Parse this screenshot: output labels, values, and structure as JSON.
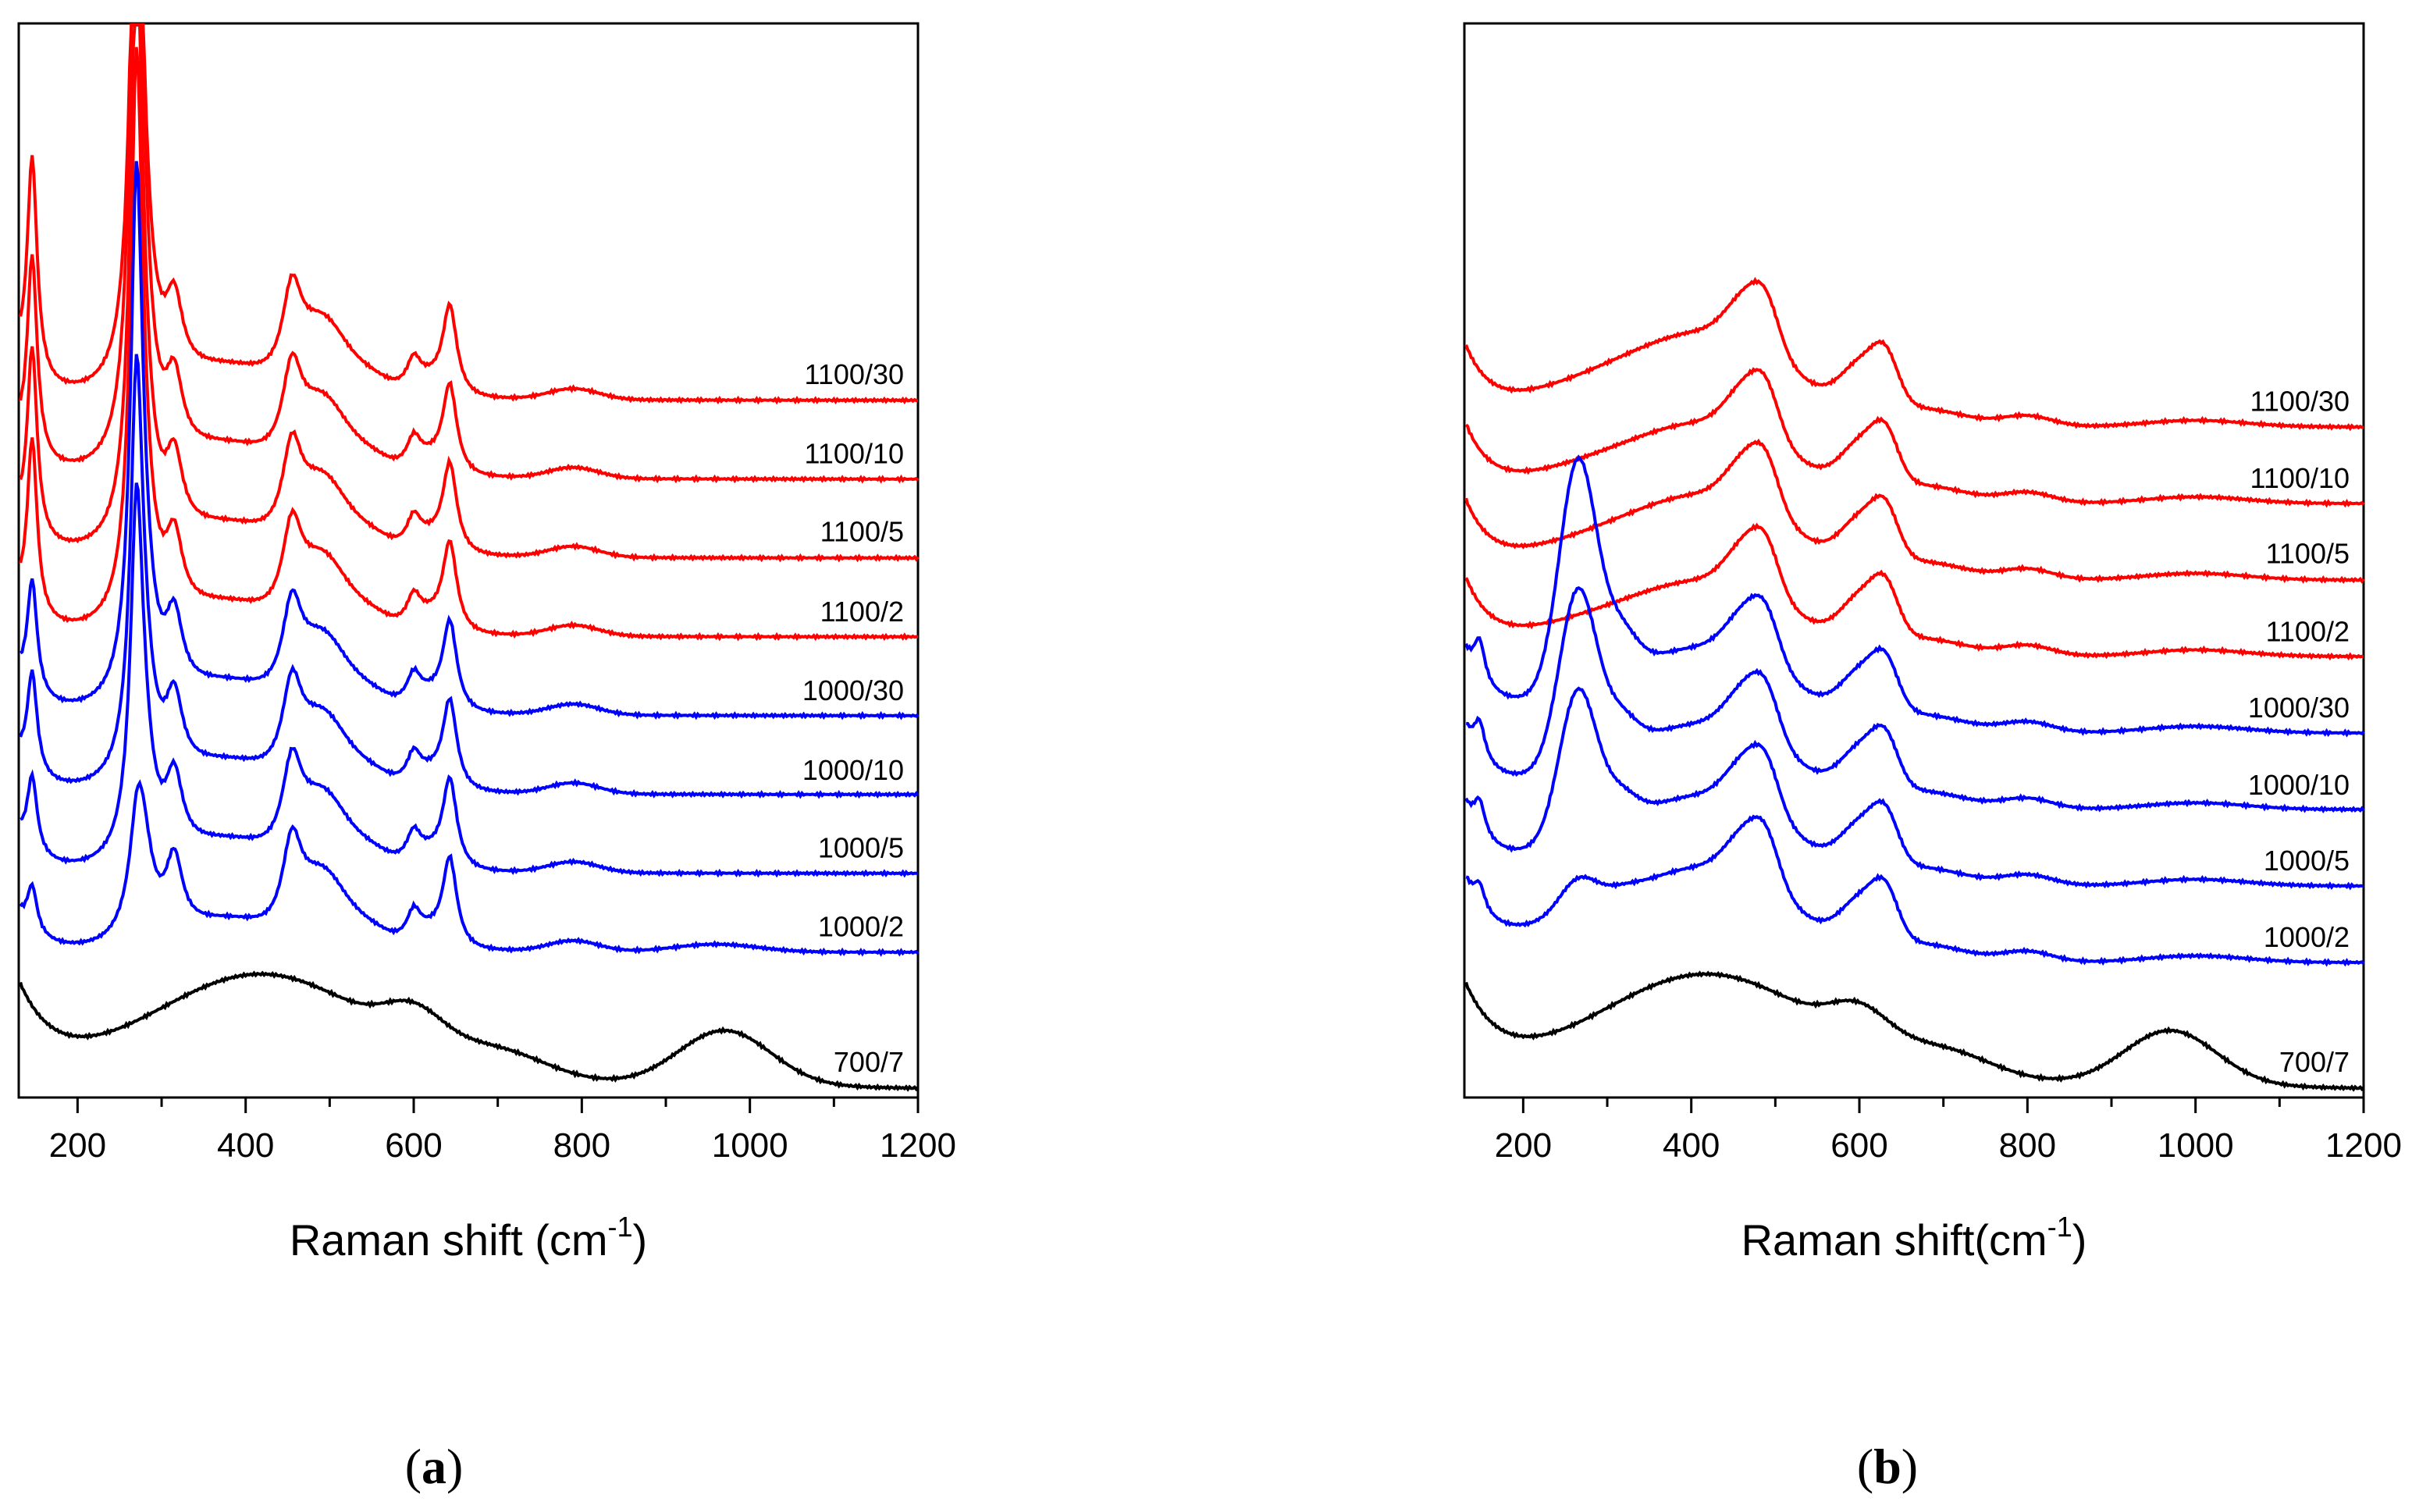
{
  "chart_data": [
    {
      "type": "line",
      "panel": "a",
      "caption_open": "(",
      "caption_letter": "a",
      "caption_close": ")",
      "xlabel_main": "Raman shift (cm",
      "xlabel_sup": "-1",
      "xlabel_close": ")",
      "xlim": [
        130,
        1200
      ],
      "xticks": [
        "200",
        "400",
        "600",
        "800",
        "1000",
        "1200"
      ],
      "ylabel": "",
      "colors": {
        "red": "#ff0000",
        "blue": "#0000ff",
        "black": "#000000"
      },
      "series": [
        {
          "name": "1100/30",
          "color": "red",
          "kind": "anatase_rutile",
          "p142": 0.88,
          "p262": 1.0,
          "rutile": 1.0,
          "tail": 0.0,
          "offset": 7
        },
        {
          "name": "1100/10",
          "color": "red",
          "kind": "anatase_rutile",
          "p142": 0.8,
          "p262": 1.15,
          "rutile": 1.0,
          "tail": 0.0,
          "offset": 6
        },
        {
          "name": "1100/5",
          "color": "red",
          "kind": "anatase_rutile",
          "p142": 0.75,
          "p262": 1.0,
          "rutile": 1.0,
          "tail": 0.0,
          "offset": 5
        },
        {
          "name": "1100/2",
          "color": "red",
          "kind": "anatase_rutile",
          "p142": 0.7,
          "p262": 0.92,
          "rutile": 1.0,
          "tail": 0.0,
          "offset": 4
        },
        {
          "name": "1000/30",
          "color": "blue",
          "kind": "anatase_rutile",
          "p142": 0.45,
          "p262": 0.85,
          "rutile": 1.0,
          "tail": 0.0,
          "offset": 3
        },
        {
          "name": "1000/10",
          "color": "blue",
          "kind": "anatase_rutile",
          "p142": 0.4,
          "p262": 0.62,
          "rutile": 1.0,
          "tail": 0.0,
          "offset": 2
        },
        {
          "name": "1000/5",
          "color": "blue",
          "kind": "anatase_rutile",
          "p142": 0.3,
          "p262": 0.52,
          "rutile": 1.0,
          "tail": 0.0,
          "offset": 1
        },
        {
          "name": "1000/2",
          "color": "blue",
          "kind": "anatase_rutile",
          "p142": 0.18,
          "p262": 0.06,
          "rutile": 1.0,
          "tail": 0.05,
          "offset": 0
        },
        {
          "name": "700/7",
          "color": "black",
          "kind": "amorphous",
          "offset": -1
        }
      ]
    },
    {
      "type": "line",
      "panel": "b",
      "caption_open": "(",
      "caption_letter": "b",
      "caption_close": ")",
      "xlabel_main": "Raman shift(cm",
      "xlabel_sup": "-1",
      "xlabel_close": ")",
      "xlim": [
        130,
        1200
      ],
      "xticks": [
        "200",
        "400",
        "600",
        "800",
        "1000",
        "1200"
      ],
      "ylabel": "",
      "colors": {
        "red": "#ff0000",
        "blue": "#0000ff",
        "black": "#000000"
      },
      "series": [
        {
          "name": "1100/30",
          "color": "red",
          "kind": "broad",
          "p142": 0.0,
          "p262": 0.0,
          "hump": 1.0,
          "offset": 7
        },
        {
          "name": "1100/10",
          "color": "red",
          "kind": "broad",
          "p142": 0.0,
          "p262": 0.0,
          "hump": 0.85,
          "offset": 6
        },
        {
          "name": "1100/5",
          "color": "red",
          "kind": "broad",
          "p142": 0.0,
          "p262": 0.0,
          "hump": 0.9,
          "offset": 5
        },
        {
          "name": "1100/2",
          "color": "red",
          "kind": "broad",
          "p142": 0.0,
          "p262": 0.0,
          "hump": 0.8,
          "offset": 4
        },
        {
          "name": "1000/30",
          "color": "blue",
          "kind": "broad",
          "p142": 0.25,
          "p262": 0.85,
          "hump": 0.9,
          "offset": 3
        },
        {
          "name": "1000/10",
          "color": "blue",
          "kind": "broad",
          "p142": 0.22,
          "p262": 0.65,
          "hump": 0.9,
          "offset": 2
        },
        {
          "name": "1000/5",
          "color": "blue",
          "kind": "broad",
          "p142": 0.2,
          "p262": 0.55,
          "hump": 0.95,
          "offset": 1
        },
        {
          "name": "1000/2",
          "color": "blue",
          "kind": "broad",
          "p142": 0.15,
          "p262": 0.12,
          "hump": 1.0,
          "offset": 0
        },
        {
          "name": "700/7",
          "color": "black",
          "kind": "amorphous",
          "offset": -1
        }
      ]
    }
  ]
}
